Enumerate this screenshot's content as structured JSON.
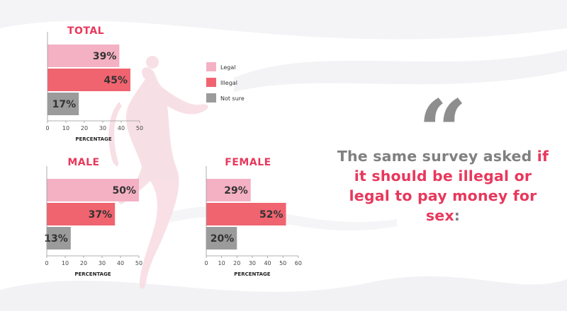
{
  "colors": {
    "legal": "#f4b1c3",
    "illegal": "#f06470",
    "not_sure": "#9b9b9b",
    "accent": "#e8385c",
    "quote_gray": "#808080"
  },
  "legend": [
    {
      "label": "Legal",
      "color": "#f4b1c3"
    },
    {
      "label": "Illegal",
      "color": "#f06470"
    },
    {
      "label": "Not sure",
      "color": "#9b9b9b"
    }
  ],
  "chart_data": [
    {
      "type": "bar",
      "orientation": "horizontal",
      "title": "TOTAL",
      "categories": [
        "Legal",
        "Illegal",
        "Not sure"
      ],
      "values": [
        39,
        45,
        17
      ],
      "value_labels": [
        "39%",
        "45%",
        "17%"
      ],
      "xlabel": "PERCENTAGE",
      "xlim": [
        0,
        50
      ],
      "xticks": [
        0,
        10,
        20,
        30,
        40,
        50
      ],
      "grid": false,
      "legend": "right"
    },
    {
      "type": "bar",
      "orientation": "horizontal",
      "title": "MALE",
      "categories": [
        "Legal",
        "Illegal",
        "Not sure"
      ],
      "values": [
        50,
        37,
        13
      ],
      "value_labels": [
        "50%",
        "37%",
        "13%"
      ],
      "xlabel": "PERCENTAGE",
      "xlim": [
        0,
        50
      ],
      "xticks": [
        0,
        10,
        20,
        30,
        40,
        50
      ],
      "grid": false
    },
    {
      "type": "bar",
      "orientation": "horizontal",
      "title": "FEMALE",
      "categories": [
        "Legal",
        "Illegal",
        "Not sure"
      ],
      "values": [
        29,
        52,
        20
      ],
      "value_labels": [
        "29%",
        "52%",
        "20%"
      ],
      "xlabel": "PERCENTAGE",
      "xlim": [
        0,
        60
      ],
      "xticks": [
        0,
        10,
        20,
        30,
        40,
        50,
        60
      ],
      "grid": false
    }
  ],
  "quote": {
    "mark": "“",
    "part1": "The same survey asked ",
    "highlight": "if it should be illegal or legal to pay money for sex",
    "part2": ":"
  }
}
